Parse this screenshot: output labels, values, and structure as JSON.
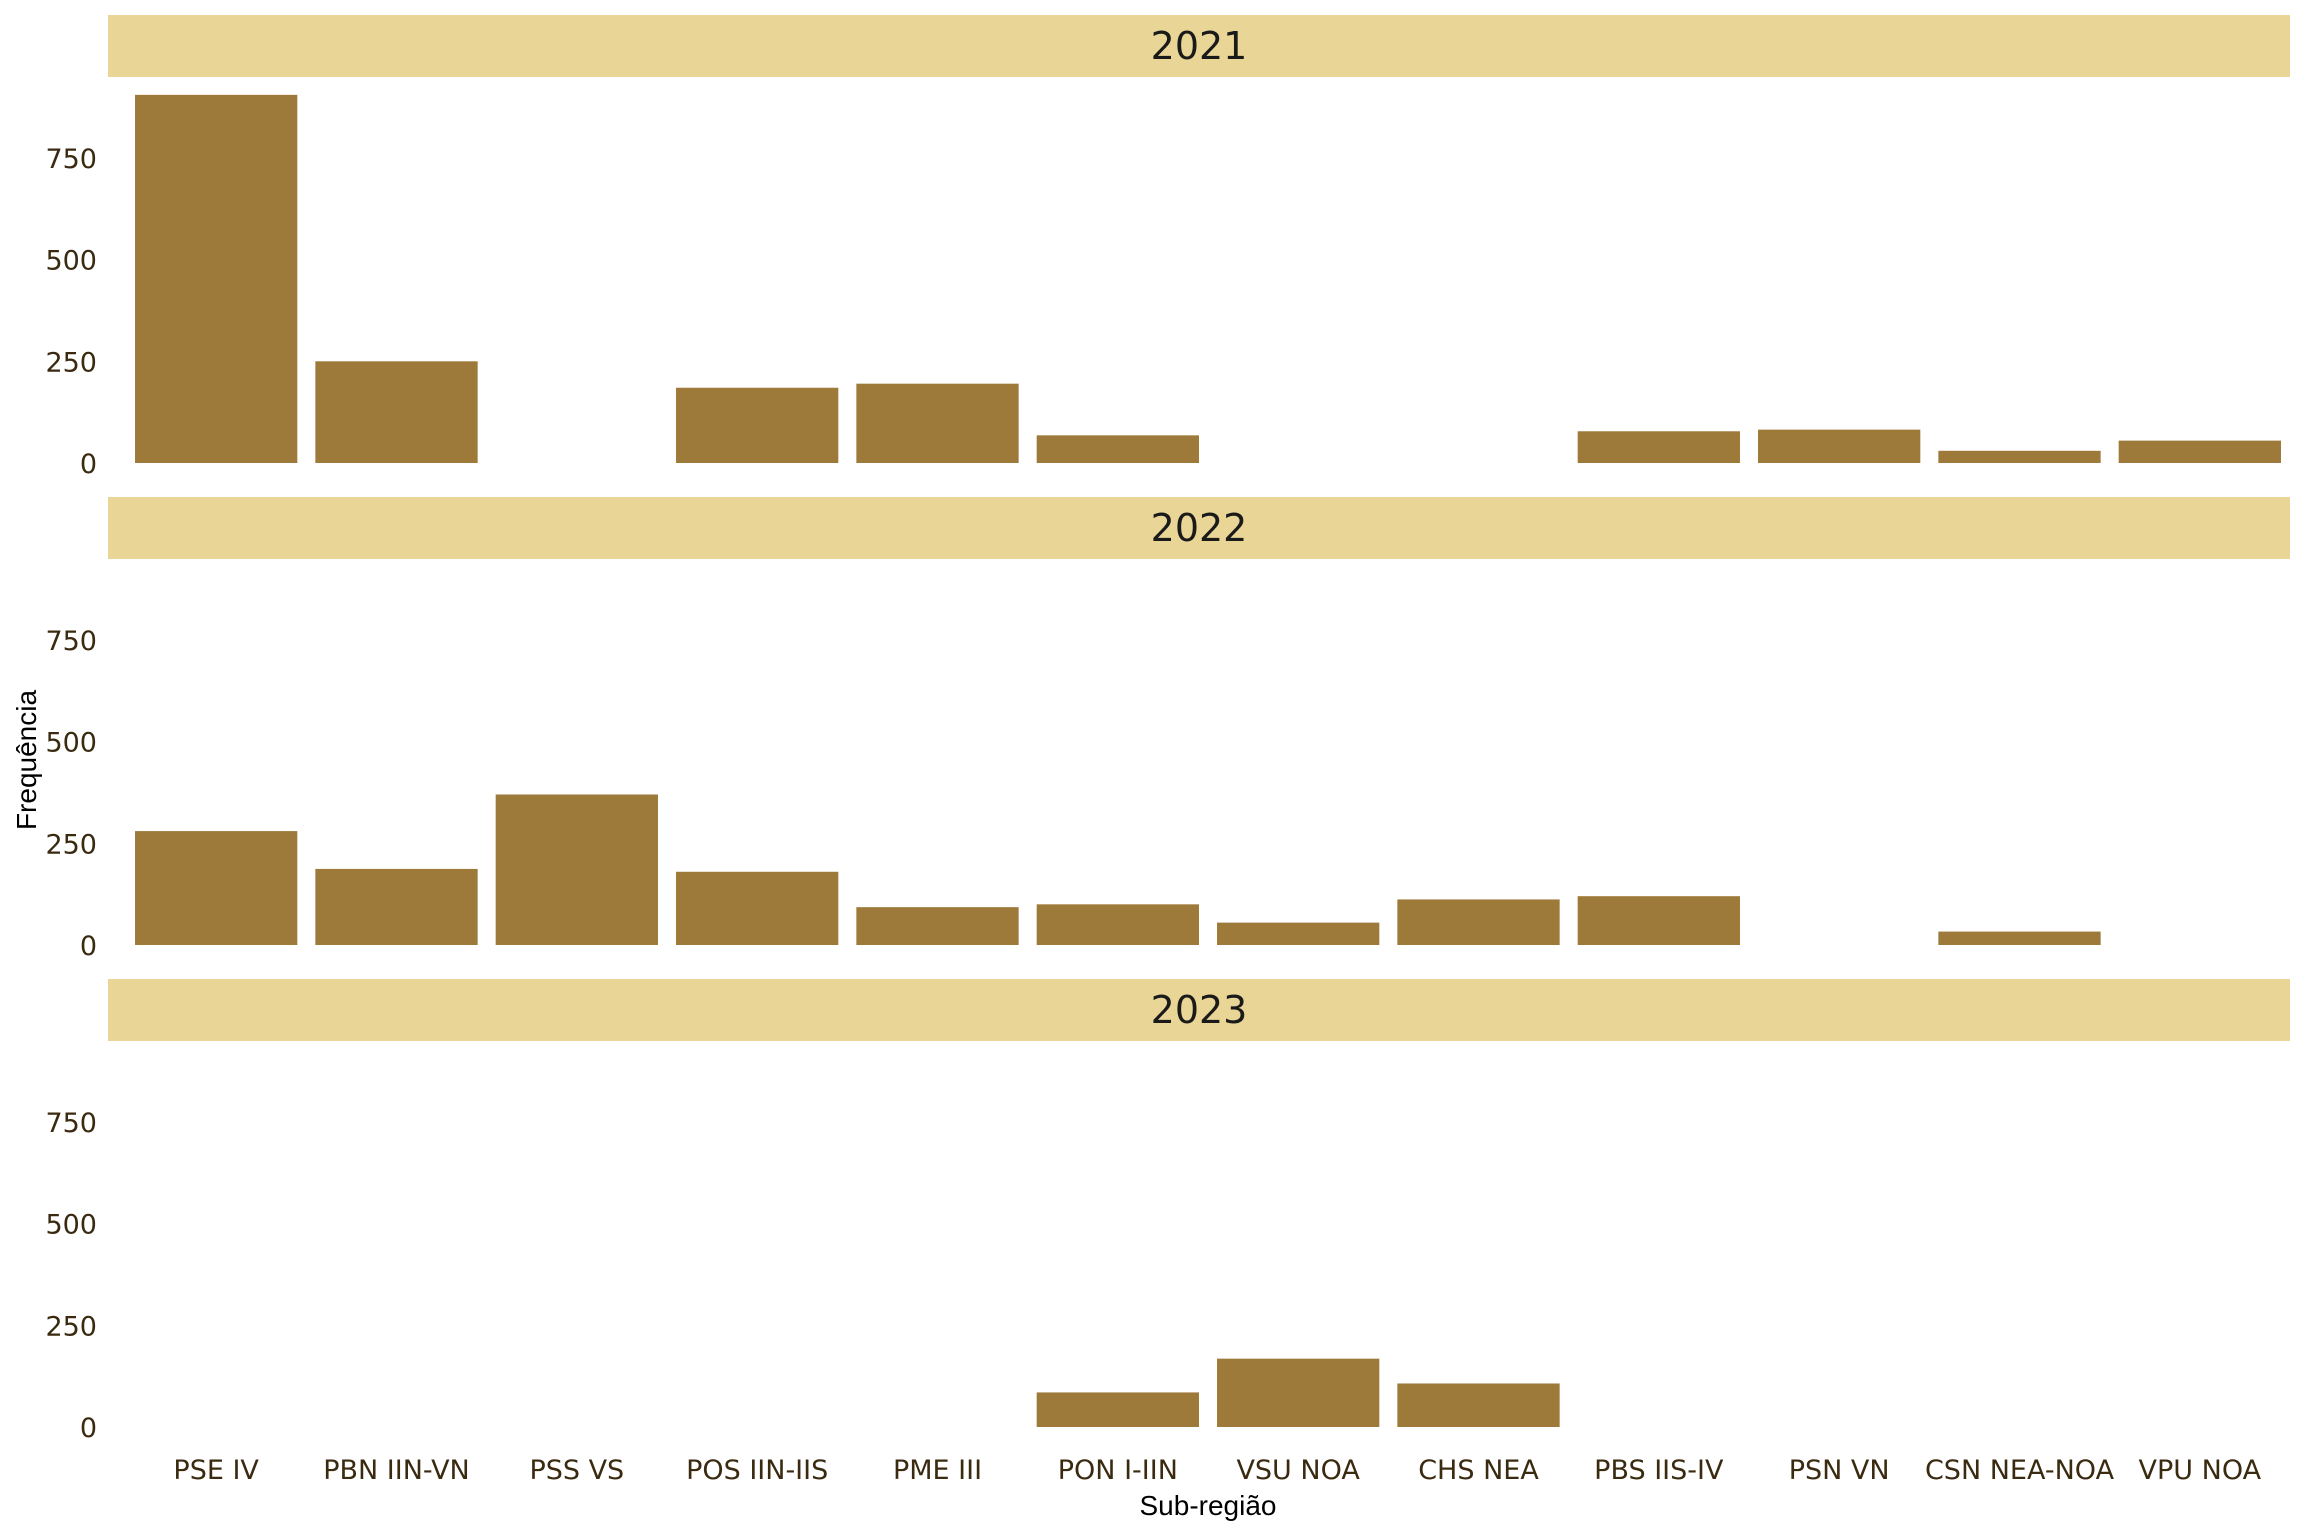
{
  "chart_data": {
    "type": "bar",
    "xlabel": "Sub-região",
    "ylabel": "Frequência",
    "ylim": [
      0,
      960
    ],
    "yticks": [
      0,
      250,
      500,
      750
    ],
    "grid": false,
    "categories": [
      "PSE IV",
      "PBN IIN-VN",
      "PSS VS",
      "POS IIN-IIS",
      "PME III",
      "PON I-IIN",
      "VSU NOA",
      "CHS NEA",
      "PBS IIS-IV",
      "PSN VN",
      "CSN NEA-NOA",
      "VPU NOA"
    ],
    "facets": [
      {
        "name": "2021",
        "values": [
          905,
          250,
          0,
          185,
          195,
          68,
          0,
          0,
          78,
          82,
          30,
          55
        ]
      },
      {
        "name": "2022",
        "values": [
          280,
          187,
          370,
          180,
          93,
          100,
          55,
          112,
          120,
          0,
          33,
          0
        ]
      },
      {
        "name": "2023",
        "values": [
          0,
          0,
          0,
          0,
          0,
          85,
          168,
          107,
          0,
          0,
          0,
          0
        ]
      }
    ],
    "colors": {
      "bar": "#9E7A3A",
      "strip": "#E9D696",
      "text": "#3a2a10"
    }
  }
}
